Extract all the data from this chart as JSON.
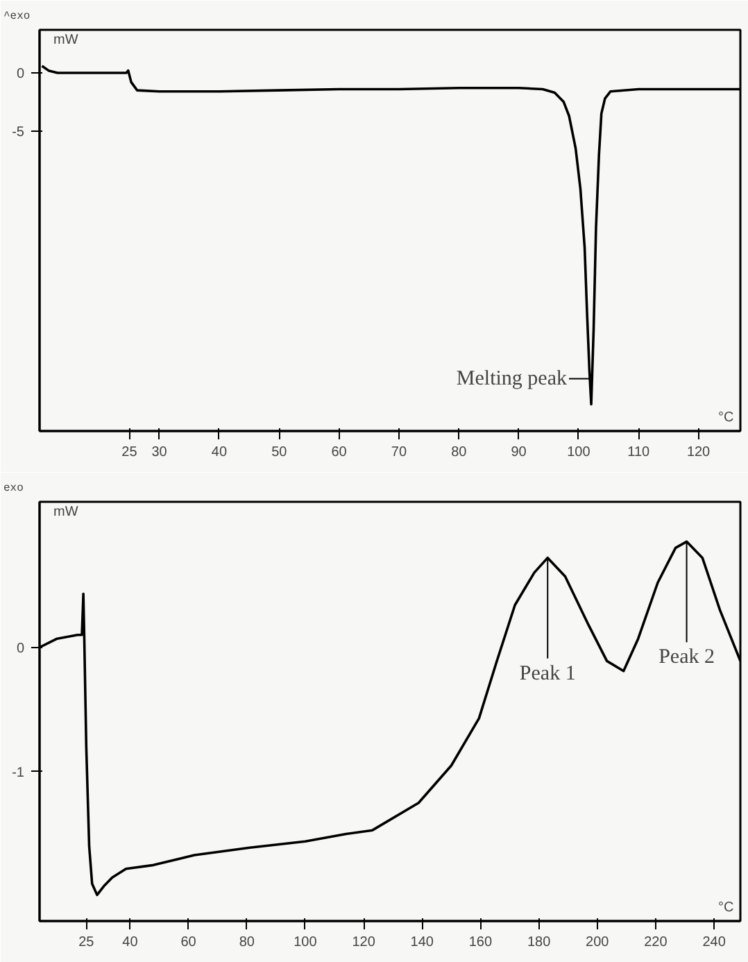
{
  "chart_data": [
    {
      "type": "line",
      "xlabel": "°C",
      "ylabel": "mW",
      "annotations": [
        "^exo",
        {
          "text": "Melting peak",
          "x": 101.9,
          "y": -26.3
        }
      ],
      "xlim": [
        10,
        127
      ],
      "xticks": [
        25,
        30,
        40,
        50,
        60,
        70,
        80,
        90,
        100,
        110,
        120
      ],
      "ylim": [
        -30.8,
        3.7
      ],
      "yticks": [
        0,
        -5
      ],
      "grid": false,
      "series": [
        {
          "color": "#000000",
          "x": [
            10.4,
            11.5,
            13,
            16,
            20,
            24.5,
            24.8,
            25.3,
            26.3,
            30,
            40,
            50,
            60,
            70,
            80,
            90,
            94,
            96,
            97.5,
            98.4,
            99.5,
            100.3,
            101,
            101.4,
            101.8,
            102.1,
            102.5,
            102.9,
            103.4,
            103.8,
            104.4,
            105.3,
            110,
            120,
            127
          ],
          "values": [
            0.6,
            0.2,
            0,
            0,
            0,
            0,
            0.2,
            -0.8,
            -1.5,
            -1.6,
            -1.6,
            -1.5,
            -1.4,
            -1.4,
            -1.3,
            -1.3,
            -1.4,
            -1.7,
            -2.5,
            -3.7,
            -6.5,
            -10,
            -15,
            -20.6,
            -25.6,
            -28.5,
            -22.1,
            -13.3,
            -7,
            -3.5,
            -2.2,
            -1.6,
            -1.4,
            -1.4,
            -1.4
          ]
        }
      ]
    },
    {
      "type": "line",
      "xlabel": "°C",
      "ylabel": "mW",
      "annotations": [
        "exo",
        {
          "text": "Peak 1",
          "x": 183,
          "y": 0.72
        },
        {
          "text": "Peak 2",
          "x": 230.6,
          "y": 0.85
        }
      ],
      "xlim": [
        9,
        249
      ],
      "xticks": [
        25,
        40,
        60,
        80,
        100,
        120,
        140,
        160,
        180,
        200,
        220,
        240
      ],
      "ylim": [
        -2.2,
        1.17
      ],
      "yticks": [
        0,
        -1
      ],
      "grid": false,
      "series": [
        {
          "color": "#000000",
          "x": [
            9,
            15,
            22,
            23.5,
            24,
            24.3,
            25,
            26,
            27,
            28.7,
            31,
            33.9,
            38.6,
            48,
            62,
            81,
            100,
            114,
            123,
            138.8,
            150,
            159.5,
            165.6,
            171.8,
            178.4,
            183,
            189,
            197,
            203.3,
            209,
            214,
            220.7,
            226.8,
            230.6,
            236,
            242,
            249
          ],
          "values": [
            0,
            0.07,
            0.1,
            0.1,
            0.43,
            0.1,
            -0.8,
            -1.6,
            -1.9,
            -1.99,
            -1.92,
            -1.85,
            -1.78,
            -1.75,
            -1.67,
            -1.61,
            -1.56,
            -1.5,
            -1.47,
            -1.25,
            -0.95,
            -0.57,
            -0.11,
            0.34,
            0.6,
            0.72,
            0.57,
            0.18,
            -0.11,
            -0.19,
            0.07,
            0.52,
            0.8,
            0.85,
            0.72,
            0.3,
            -0.11
          ]
        }
      ]
    }
  ]
}
